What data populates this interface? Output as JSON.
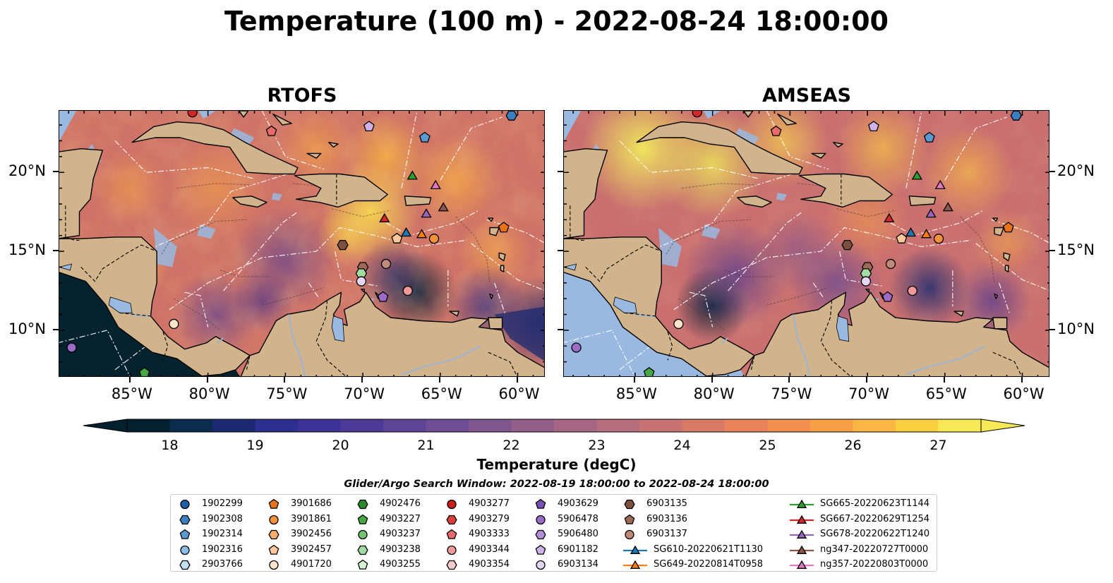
{
  "title": "Temperature (100 m) - 2022-08-24 18:00:00",
  "maps": [
    {
      "title": "RTOFS",
      "palette": "warm"
    },
    {
      "title": "AMSEAS",
      "palette": "hot"
    }
  ],
  "axes": {
    "lon_ticks": [
      "85°W",
      "80°W",
      "75°W",
      "70°W",
      "65°W",
      "60°W"
    ],
    "lat_ticks": [
      "20°N",
      "15°N",
      "10°N"
    ]
  },
  "colorbar": {
    "label": "Temperature (degC)",
    "ticks": [
      "18",
      "19",
      "20",
      "21",
      "22",
      "23",
      "24",
      "25",
      "26",
      "27"
    ],
    "colors": [
      "#04202f",
      "#0b2d4d",
      "#1b2a70",
      "#2c2f8f",
      "#3b3196",
      "#4c3a98",
      "#5e4496",
      "#6f4d92",
      "#80568e",
      "#925f8a",
      "#a46683",
      "#b66d7c",
      "#c87373",
      "#d97a66",
      "#e8835a",
      "#f18f4f",
      "#f6a046",
      "#fab642",
      "#fbcf42",
      "#f6e955"
    ],
    "min": 18,
    "max": 27
  },
  "legend": {
    "caption": "Glider/Argo Search Window: 2022-08-19 18:00:00 to 2022-08-24 18:00:00",
    "columns": [
      [
        {
          "label": "1902299",
          "shape": "circle",
          "color": "#1f5fa8"
        },
        {
          "label": "1902308",
          "shape": "hexagon",
          "color": "#3a7fc0"
        },
        {
          "label": "1902314",
          "shape": "pentagon",
          "color": "#5a9ad0"
        },
        {
          "label": "1902316",
          "shape": "circle",
          "color": "#8bbde6"
        },
        {
          "label": "2903766",
          "shape": "hexagon",
          "color": "#c3e1f7"
        }
      ],
      [
        {
          "label": "3901686",
          "shape": "pentagon",
          "color": "#e8731a"
        },
        {
          "label": "3901861",
          "shape": "circle",
          "color": "#f2923a"
        },
        {
          "label": "3902456",
          "shape": "hexagon",
          "color": "#f7ae6a"
        },
        {
          "label": "3902457",
          "shape": "pentagon",
          "color": "#fac899"
        },
        {
          "label": "4901720",
          "shape": "circle",
          "color": "#fde3c8"
        }
      ],
      [
        {
          "label": "4902476",
          "shape": "hexagon",
          "color": "#2a8a2a"
        },
        {
          "label": "4903227",
          "shape": "pentagon",
          "color": "#45a845"
        },
        {
          "label": "4903237",
          "shape": "circle",
          "color": "#72c472"
        },
        {
          "label": "4903238",
          "shape": "hexagon",
          "color": "#a3dca3"
        },
        {
          "label": "4903255",
          "shape": "pentagon",
          "color": "#d4f2d4"
        }
      ],
      [
        {
          "label": "4903277",
          "shape": "circle",
          "color": "#c81e1e"
        },
        {
          "label": "4903279",
          "shape": "hexagon",
          "color": "#dc3c3c"
        },
        {
          "label": "4903333",
          "shape": "pentagon",
          "color": "#e86a6a"
        },
        {
          "label": "4903344",
          "shape": "circle",
          "color": "#f29a9a"
        },
        {
          "label": "4903354",
          "shape": "hexagon",
          "color": "#f9caca"
        }
      ],
      [
        {
          "label": "4903629",
          "shape": "pentagon",
          "color": "#7a4fb4"
        },
        {
          "label": "5906478",
          "shape": "circle",
          "color": "#9a6cc8"
        },
        {
          "label": "5906480",
          "shape": "hexagon",
          "color": "#b48fd8"
        },
        {
          "label": "6901182",
          "shape": "pentagon",
          "color": "#cfb3e8"
        },
        {
          "label": "6903134",
          "shape": "circle",
          "color": "#e6d6f5"
        }
      ],
      [
        {
          "label": "6903135",
          "shape": "hexagon",
          "color": "#7d5040"
        },
        {
          "label": "6903136",
          "shape": "pentagon",
          "color": "#9d6a58"
        },
        {
          "label": "6903137",
          "shape": "circle",
          "color": "#c08a78"
        },
        {
          "label": "SG610-20220621T1130",
          "shape": "triangle-line",
          "color": "#1f77b4"
        },
        {
          "label": "SG649-20220814T0958",
          "shape": "triangle-line",
          "color": "#ff7f0e"
        }
      ],
      [
        {
          "label": "SG665-20220623T1144",
          "shape": "triangle-line",
          "color": "#2ca02c"
        },
        {
          "label": "SG667-20220629T1254",
          "shape": "triangle-line",
          "color": "#d62728"
        },
        {
          "label": "SG678-20220622T1240",
          "shape": "triangle-line",
          "color": "#9467bd"
        },
        {
          "label": "ng347-20220727T0000",
          "shape": "triangle-line",
          "color": "#8c564b"
        },
        {
          "label": "ng357-20220803T0000",
          "shape": "triangle-line",
          "color": "#e377c2"
        }
      ]
    ]
  },
  "map_markers": [
    {
      "shape": "circle",
      "color": "#d62728",
      "lon": -81.0,
      "lat": 23.8
    },
    {
      "shape": "hexagon",
      "color": "#3a7fc0",
      "lon": -60.4,
      "lat": 23.6
    },
    {
      "shape": "pentagon",
      "color": "#e86a6a",
      "lon": -75.9,
      "lat": 22.6
    },
    {
      "shape": "pentagon",
      "color": "#cfb3e8",
      "lon": -69.6,
      "lat": 22.9
    },
    {
      "shape": "pentagon",
      "color": "#5a9ad0",
      "lon": -66.0,
      "lat": 22.2
    },
    {
      "shape": "triangle",
      "color": "#2ca02c",
      "lon": -66.8,
      "lat": 19.8
    },
    {
      "shape": "triangle",
      "color": "#e377c2",
      "lon": -65.3,
      "lat": 19.2
    },
    {
      "shape": "triangle",
      "color": "#8c564b",
      "lon": -64.8,
      "lat": 17.8
    },
    {
      "shape": "triangle",
      "color": "#9467bd",
      "lon": -65.9,
      "lat": 17.4
    },
    {
      "shape": "triangle",
      "color": "#d62728",
      "lon": -68.6,
      "lat": 17.1
    },
    {
      "shape": "pentagon",
      "color": "#e8731a",
      "lon": -60.9,
      "lat": 16.5
    },
    {
      "shape": "triangle",
      "color": "#1f77b4",
      "lon": -67.2,
      "lat": 16.2
    },
    {
      "shape": "triangle",
      "color": "#ff7f0e",
      "lon": -66.2,
      "lat": 16.1
    },
    {
      "shape": "circle",
      "color": "#f2923a",
      "lon": -65.4,
      "lat": 15.8
    },
    {
      "shape": "pentagon",
      "color": "#fac899",
      "lon": -67.8,
      "lat": 15.8
    },
    {
      "shape": "hexagon",
      "color": "#7d5040",
      "lon": -71.3,
      "lat": 15.4
    },
    {
      "shape": "circle",
      "color": "#c08a78",
      "lon": -68.5,
      "lat": 14.2
    },
    {
      "shape": "hexagon",
      "color": "#9d6a58",
      "lon": -70.0,
      "lat": 14.0
    },
    {
      "shape": "hexagon",
      "color": "#a3dca3",
      "lon": -70.1,
      "lat": 13.6
    },
    {
      "shape": "circle",
      "color": "#e6d6f5",
      "lon": -70.1,
      "lat": 13.1
    },
    {
      "shape": "circle",
      "color": "#f29a9a",
      "lon": -67.1,
      "lat": 12.5
    },
    {
      "shape": "pentagon",
      "color": "#9a6cc8",
      "lon": -68.7,
      "lat": 12.1
    },
    {
      "shape": "circle",
      "color": "#fde3c8",
      "lon": -82.2,
      "lat": 10.4
    },
    {
      "shape": "circle",
      "color": "#9a6cc8",
      "lon": -88.8,
      "lat": 8.9
    },
    {
      "shape": "pentagon",
      "color": "#45a845",
      "lon": -84.1,
      "lat": 7.3
    }
  ]
}
